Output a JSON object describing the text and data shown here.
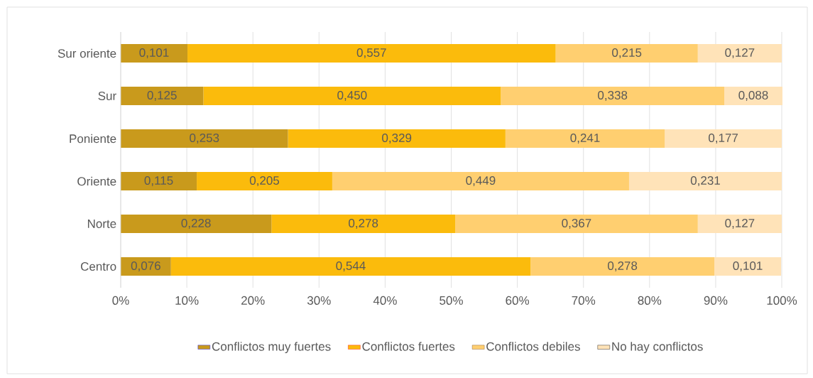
{
  "chart_data": {
    "type": "bar",
    "orientation": "horizontal",
    "stacked": true,
    "categories": [
      "Sur oriente",
      "Sur",
      "Poniente",
      "Oriente",
      "Norte",
      "Centro"
    ],
    "series": [
      {
        "name": "Conflictos muy fuertes",
        "color": "#c99a1c",
        "values": [
          0.101,
          0.125,
          0.253,
          0.115,
          0.228,
          0.076
        ],
        "value_labels": [
          "0,101",
          "0,125",
          "0,253",
          "0,115",
          "0,228",
          "0,076"
        ]
      },
      {
        "name": "Conflictos fuertes",
        "color": "#fbbb0c",
        "values": [
          0.557,
          0.45,
          0.329,
          0.205,
          0.278,
          0.544
        ],
        "value_labels": [
          "0,557",
          "0,450",
          "0,329",
          "0,205",
          "0,278",
          "0,544"
        ]
      },
      {
        "name": "Conflictos debiles",
        "color": "#ffcf70",
        "values": [
          0.215,
          0.338,
          0.241,
          0.449,
          0.367,
          0.278
        ],
        "value_labels": [
          "0,215",
          "0,338",
          "0,241",
          "0,449",
          "0,367",
          "0,278"
        ]
      },
      {
        "name": "No hay conflictos",
        "color": "#ffe3b8",
        "values": [
          0.127,
          0.088,
          0.177,
          0.231,
          0.127,
          0.101
        ],
        "value_labels": [
          "0,127",
          "0,088",
          "0,177",
          "0,231",
          "0,127",
          "0,101"
        ]
      }
    ],
    "xlim": [
      0,
      1
    ],
    "xticks": [
      {
        "value": 0,
        "label": "0%"
      },
      {
        "value": 0.1,
        "label": "10%"
      },
      {
        "value": 0.2,
        "label": "20%"
      },
      {
        "value": 0.3,
        "label": "30%"
      },
      {
        "value": 0.4,
        "label": "40%"
      },
      {
        "value": 0.5,
        "label": "50%"
      },
      {
        "value": 0.6,
        "label": "60%"
      },
      {
        "value": 0.7,
        "label": "70%"
      },
      {
        "value": 0.8,
        "label": "80%"
      },
      {
        "value": 0.9,
        "label": "90%"
      },
      {
        "value": 1,
        "label": "100%"
      }
    ],
    "grid": "x",
    "legend": "bottom"
  }
}
